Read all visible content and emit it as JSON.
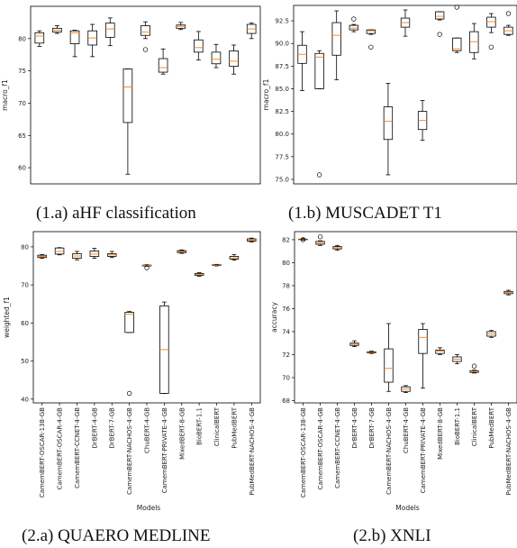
{
  "panels": [
    {
      "id": "1a",
      "caption": "(1.a) aHF classification",
      "chart_data": {
        "type": "box",
        "ylabel": "macro_f1",
        "xlabel": "",
        "ylim": [
          57.5,
          85
        ],
        "yticks": [
          60,
          65,
          70,
          75,
          80
        ],
        "show_xticks": false,
        "boxes": [
          {
            "lw": 78.8,
            "q1": 79.3,
            "med": 80.4,
            "q3": 80.9,
            "uw": 81.2,
            "fl": []
          },
          {
            "lw": 80.8,
            "q1": 81.0,
            "med": 81.3,
            "q3": 81.6,
            "uw": 82.0,
            "fl": []
          },
          {
            "lw": 77.2,
            "q1": 79.2,
            "med": 80.9,
            "q3": 81.2,
            "uw": 81.3,
            "fl": []
          },
          {
            "lw": 77.2,
            "q1": 79.0,
            "med": 80.1,
            "q3": 81.2,
            "uw": 82.2,
            "fl": []
          },
          {
            "lw": 78.9,
            "q1": 80.2,
            "med": 81.5,
            "q3": 82.4,
            "uw": 83.2,
            "fl": []
          },
          {
            "lw": 59.0,
            "q1": 67.0,
            "med": 72.5,
            "q3": 75.3,
            "uw": 75.3,
            "fl": []
          },
          {
            "lw": 80.0,
            "q1": 80.5,
            "med": 81.0,
            "q3": 82.0,
            "uw": 82.6,
            "fl": [
              78.3
            ]
          },
          {
            "lw": 74.5,
            "q1": 74.8,
            "med": 75.5,
            "q3": 76.9,
            "uw": 78.4,
            "fl": []
          },
          {
            "lw": 81.4,
            "q1": 81.6,
            "med": 81.9,
            "q3": 82.1,
            "uw": 82.5,
            "fl": []
          },
          {
            "lw": 76.7,
            "q1": 77.9,
            "med": 78.6,
            "q3": 79.8,
            "uw": 81.1,
            "fl": []
          },
          {
            "lw": 75.5,
            "q1": 76.1,
            "med": 76.8,
            "q3": 77.9,
            "uw": 79.1,
            "fl": []
          },
          {
            "lw": 74.5,
            "q1": 75.7,
            "med": 76.5,
            "q3": 78.1,
            "uw": 79.0,
            "fl": []
          },
          {
            "lw": 80.0,
            "q1": 80.8,
            "med": 81.5,
            "q3": 82.2,
            "uw": 82.4,
            "fl": []
          }
        ]
      }
    },
    {
      "id": "1b",
      "caption": "(1.b) MUSCADET T1",
      "chart_data": {
        "type": "box",
        "ylabel": "macro_f1",
        "xlabel": "",
        "ylim": [
          74.5,
          94.2
        ],
        "yticks": [
          75.0,
          77.5,
          80.0,
          82.5,
          85.0,
          87.5,
          90.0,
          92.5
        ],
        "ytick_labels": [
          "75.0",
          "77.5",
          "80.0",
          "82.5",
          "85.0",
          "87.5",
          "90.0",
          "92.5"
        ],
        "show_xticks": false,
        "boxes": [
          {
            "lw": 84.8,
            "q1": 87.8,
            "med": 88.8,
            "q3": 89.8,
            "uw": 91.3,
            "fl": []
          },
          {
            "lw": 85.0,
            "q1": 85.0,
            "med": 88.5,
            "q3": 88.9,
            "uw": 89.2,
            "fl": [
              75.5
            ]
          },
          {
            "lw": 86.0,
            "q1": 88.7,
            "med": 90.9,
            "q3": 92.3,
            "uw": 93.6,
            "fl": []
          },
          {
            "lw": 91.3,
            "q1": 91.5,
            "med": 91.7,
            "q3": 92.0,
            "uw": 92.1,
            "fl": [
              92.7
            ]
          },
          {
            "lw": 91.0,
            "q1": 91.1,
            "med": 91.4,
            "q3": 91.5,
            "uw": 91.5,
            "fl": [
              89.6
            ]
          },
          {
            "lw": 75.5,
            "q1": 79.4,
            "med": 81.4,
            "q3": 83.0,
            "uw": 85.6,
            "fl": []
          },
          {
            "lw": 90.8,
            "q1": 91.8,
            "med": 92.3,
            "q3": 92.8,
            "uw": 93.7,
            "fl": []
          },
          {
            "lw": 79.3,
            "q1": 80.5,
            "med": 81.5,
            "q3": 82.5,
            "uw": 83.7,
            "fl": []
          },
          {
            "lw": 92.6,
            "q1": 92.7,
            "med": 93.0,
            "q3": 93.5,
            "uw": 93.5,
            "fl": [
              91.0
            ]
          },
          {
            "lw": 89.0,
            "q1": 89.2,
            "med": 89.4,
            "q3": 90.6,
            "uw": 90.6,
            "fl": [
              94.0
            ]
          },
          {
            "lw": 88.3,
            "q1": 89.0,
            "med": 90.2,
            "q3": 91.3,
            "uw": 92.2,
            "fl": []
          },
          {
            "lw": 91.2,
            "q1": 91.8,
            "med": 92.4,
            "q3": 92.9,
            "uw": 93.3,
            "fl": [
              89.6
            ]
          },
          {
            "lw": 90.9,
            "q1": 91.0,
            "med": 91.4,
            "q3": 91.8,
            "uw": 92.0,
            "fl": [
              93.3
            ]
          }
        ]
      }
    },
    {
      "id": "2a",
      "caption": "(2.a) QUAERO MEDLINE",
      "chart_data": {
        "type": "box",
        "ylabel": "weighted_f1",
        "xlabel": "Models",
        "ylim": [
          39,
          84
        ],
        "yticks": [
          40,
          50,
          60,
          70,
          80
        ],
        "show_xticks": true,
        "categories": [
          "CamemBERT-OSCAR-138-GB",
          "CamemBERT-OSCAR-4-GB",
          "CamemBERT-CCNET-4-GB",
          "DrBERT-4-GB",
          "DrBERT-7-GB",
          "CamemBERT-NACHOS-4-GB",
          "ChuBERT-4-GB",
          "CamemBERT-PRIVATE-4-GB",
          "MixedBERT-8-GB",
          "BioBERT-1.1",
          "ClinicalBERT",
          "PubMedBERT",
          "PubMedBERT-NACHOS-4-GB"
        ],
        "boxes": [
          {
            "lw": 77.0,
            "q1": 77.2,
            "med": 77.5,
            "q3": 77.8,
            "uw": 78.0,
            "fl": []
          },
          {
            "lw": 77.9,
            "q1": 78.1,
            "med": 78.8,
            "q3": 79.7,
            "uw": 79.8,
            "fl": []
          },
          {
            "lw": 76.6,
            "q1": 77.0,
            "med": 77.6,
            "q3": 78.2,
            "uw": 78.8,
            "fl": []
          },
          {
            "lw": 77.0,
            "q1": 77.5,
            "med": 78.1,
            "q3": 78.9,
            "uw": 79.6,
            "fl": []
          },
          {
            "lw": 77.2,
            "q1": 77.5,
            "med": 77.9,
            "q3": 78.2,
            "uw": 78.8,
            "fl": []
          },
          {
            "lw": 57.5,
            "q1": 57.5,
            "med": 62.3,
            "q3": 62.8,
            "uw": 63.0,
            "fl": [
              41.5
            ]
          },
          {
            "lw": 74.9,
            "q1": 75.0,
            "med": 75.1,
            "q3": 75.2,
            "uw": 75.3,
            "fl": [
              74.5
            ]
          },
          {
            "lw": 41.5,
            "q1": 41.5,
            "med": 53.0,
            "q3": 64.5,
            "uw": 65.5,
            "fl": []
          },
          {
            "lw": 78.3,
            "q1": 78.5,
            "med": 78.8,
            "q3": 79.0,
            "uw": 79.2,
            "fl": []
          },
          {
            "lw": 72.3,
            "q1": 72.5,
            "med": 72.7,
            "q3": 73.0,
            "uw": 73.2,
            "fl": []
          },
          {
            "lw": 75.0,
            "q1": 75.1,
            "med": 75.2,
            "q3": 75.3,
            "uw": 75.4,
            "fl": []
          },
          {
            "lw": 76.5,
            "q1": 76.8,
            "med": 77.1,
            "q3": 77.5,
            "uw": 78.0,
            "fl": []
          },
          {
            "lw": 81.3,
            "q1": 81.5,
            "med": 81.8,
            "q3": 82.1,
            "uw": 82.3,
            "fl": []
          }
        ]
      }
    },
    {
      "id": "2b",
      "caption": "(2.b) XNLI",
      "chart_data": {
        "type": "box",
        "ylabel": "accuracy",
        "xlabel": "Models",
        "ylim": [
          67.8,
          82.7
        ],
        "yticks": [
          68,
          70,
          72,
          74,
          76,
          78,
          80,
          82
        ],
        "show_xticks": true,
        "categories": [
          "CamemBERT-OSCAR-138-GB",
          "CamemBERT-OSCAR-4-GB",
          "CamemBERT-CCNET-4-GB",
          "DrBERT-4-GB",
          "DrBERT-7-GB",
          "CamemBERT-NACHOS-4-GB",
          "ChuBERT-4-GB",
          "CamemBERT-PRIVATE-4-GB",
          "MixedBERT-8-GB",
          "BioBERT-1.1",
          "ClinicalBERT",
          "PubMedBERT",
          "PubMedBERT-NACHOS-4-GB"
        ],
        "boxes": [
          {
            "lw": 81.95,
            "q1": 82.0,
            "med": 82.0,
            "q3": 82.05,
            "uw": 82.1,
            "fl": [
              82.0
            ]
          },
          {
            "lw": 81.5,
            "q1": 81.6,
            "med": 81.7,
            "q3": 81.85,
            "uw": 81.9,
            "fl": [
              82.25
            ]
          },
          {
            "lw": 81.1,
            "q1": 81.2,
            "med": 81.3,
            "q3": 81.4,
            "uw": 81.5,
            "fl": []
          },
          {
            "lw": 72.7,
            "q1": 72.8,
            "med": 72.9,
            "q3": 73.0,
            "uw": 73.2,
            "fl": []
          },
          {
            "lw": 72.1,
            "q1": 72.15,
            "med": 72.2,
            "q3": 72.25,
            "uw": 72.3,
            "fl": []
          },
          {
            "lw": 68.8,
            "q1": 69.6,
            "med": 70.8,
            "q3": 72.5,
            "uw": 74.7,
            "fl": []
          },
          {
            "lw": 68.7,
            "q1": 68.8,
            "med": 69.0,
            "q3": 69.2,
            "uw": 69.3,
            "fl": []
          },
          {
            "lw": 69.1,
            "q1": 72.1,
            "med": 73.5,
            "q3": 74.2,
            "uw": 74.7,
            "fl": []
          },
          {
            "lw": 72.0,
            "q1": 72.1,
            "med": 72.3,
            "q3": 72.4,
            "uw": 72.6,
            "fl": []
          },
          {
            "lw": 71.2,
            "q1": 71.4,
            "med": 71.6,
            "q3": 71.8,
            "uw": 72.0,
            "fl": []
          },
          {
            "lw": 70.4,
            "q1": 70.45,
            "med": 70.5,
            "q3": 70.6,
            "uw": 70.65,
            "fl": [
              71.0
            ]
          },
          {
            "lw": 73.5,
            "q1": 73.6,
            "med": 73.8,
            "q3": 74.0,
            "uw": 74.1,
            "fl": []
          },
          {
            "lw": 77.2,
            "q1": 77.3,
            "med": 77.4,
            "q3": 77.5,
            "uw": 77.6,
            "fl": []
          }
        ]
      }
    }
  ],
  "colors": {
    "box": "#000000",
    "median": "#ff7f0e",
    "background": "#ffffff"
  }
}
